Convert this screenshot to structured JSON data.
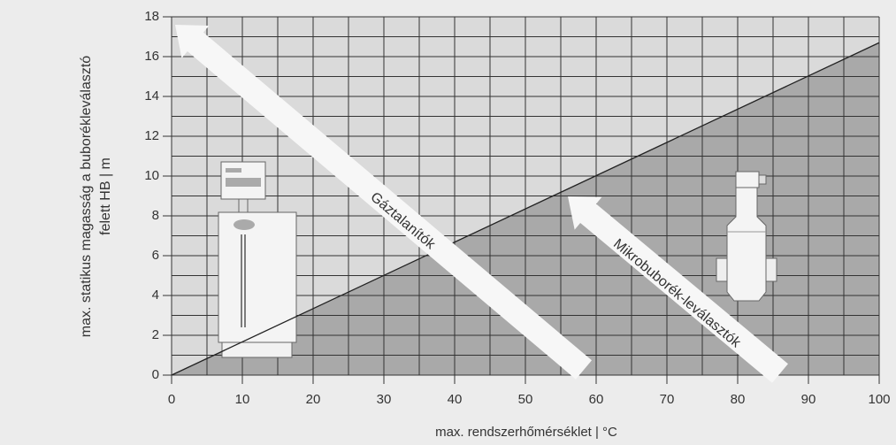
{
  "chart_data": {
    "type": "line",
    "ylabel": [
      "max. statikus magasság a buborékleválasztó",
      "felett HB | m"
    ],
    "xlabel": "max. rendszerhőmérséklet | °C",
    "x": [
      0,
      100
    ],
    "values": [
      0,
      16.7
    ],
    "color": "#222222",
    "xlim": [
      0,
      100
    ],
    "xticks": [
      0,
      10,
      20,
      30,
      40,
      50,
      60,
      70,
      80,
      90,
      100
    ],
    "ylim": [
      0,
      18
    ],
    "yticks": [
      0,
      2,
      4,
      6,
      8,
      10,
      12,
      14,
      16,
      18
    ],
    "grid": true,
    "annotations": [
      "Gáztalanítók",
      "Mikrobuborék-leválasztók"
    ]
  }
}
